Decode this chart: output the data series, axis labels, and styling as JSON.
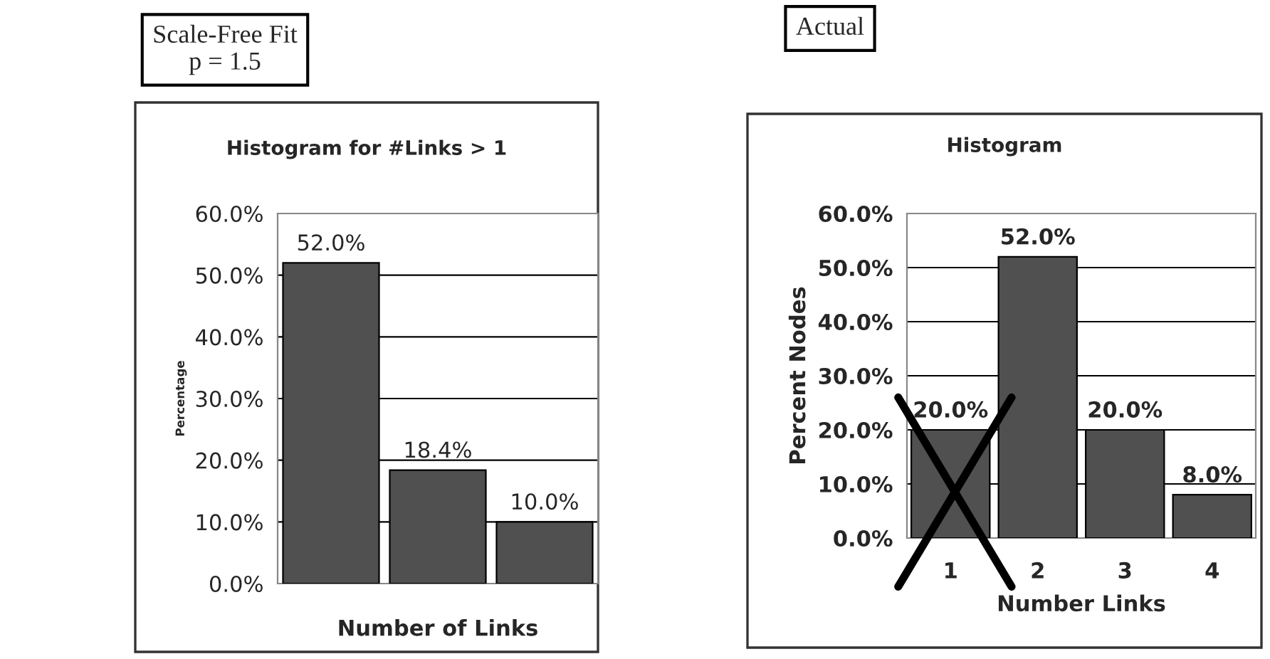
{
  "chart_data": [
    {
      "type": "bar",
      "title": "Histogram for #Links > 1",
      "xlabel": "Number of Links",
      "ylabel": "Percentage",
      "categories": [
        null,
        null,
        null
      ],
      "values": [
        52.0,
        18.4,
        10.0
      ],
      "value_labels": [
        "52.0%",
        "18.4%",
        "10.0%"
      ],
      "color": "#505050",
      "ylim": [
        0,
        60
      ],
      "yticks": [
        {
          "value": 0,
          "label": "0.0%"
        },
        {
          "value": 10,
          "label": "10.0%"
        },
        {
          "value": 20,
          "label": "20.0%"
        },
        {
          "value": 30,
          "label": "30.0%"
        },
        {
          "value": 40,
          "label": "40.0%"
        },
        {
          "value": 50,
          "label": "50.0%"
        },
        {
          "value": 60,
          "label": "60.0%"
        }
      ],
      "grid": "y",
      "annotations": [
        "Scale-Free Fit\np = 1.5"
      ]
    },
    {
      "type": "bar",
      "title": "Histogram",
      "xlabel": "Number Links",
      "ylabel": "Percent Nodes",
      "categories": [
        "1",
        "2",
        "3",
        "4"
      ],
      "values": [
        20.0,
        52.0,
        20.0,
        8.0
      ],
      "value_labels": [
        "20.0%",
        "52.0%",
        "20.0%",
        "8.0%"
      ],
      "color": "#505050",
      "ylim": [
        0,
        60
      ],
      "yticks": [
        {
          "value": 0,
          "label": "0.0%"
        },
        {
          "value": 10,
          "label": "10.0%"
        },
        {
          "value": 20,
          "label": "20.0%"
        },
        {
          "value": 30,
          "label": "30.0%"
        },
        {
          "value": 40,
          "label": "40.0%"
        },
        {
          "value": 50,
          "label": "50.0%"
        },
        {
          "value": 60,
          "label": "60.0%"
        }
      ],
      "grid": "y",
      "annotations": [
        "Actual"
      ]
    }
  ]
}
